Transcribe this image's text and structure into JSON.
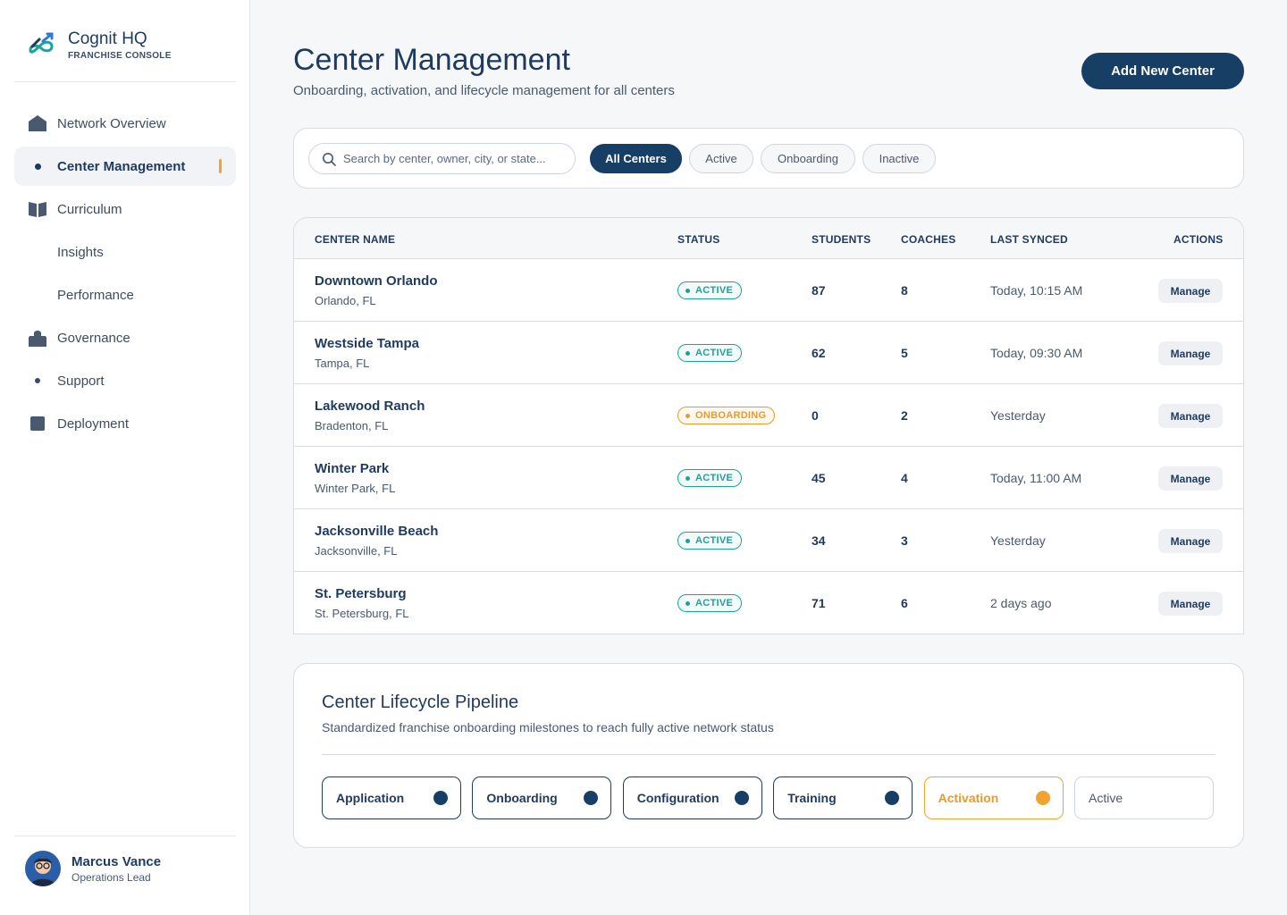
{
  "brand": {
    "name": "Cognit HQ",
    "subtitle": "FRANCHISE CONSOLE"
  },
  "nav": [
    {
      "label": "Network Overview",
      "icon": "home-icon"
    },
    {
      "label": "Center Management",
      "icon": "dot-icon",
      "active": true
    },
    {
      "label": "Curriculum",
      "icon": "book-icon"
    },
    {
      "label": "Insights",
      "icon": "none"
    },
    {
      "label": "Performance",
      "icon": "none"
    },
    {
      "label": "Governance",
      "icon": "lock-icon"
    },
    {
      "label": "Support",
      "icon": "dot-icon"
    },
    {
      "label": "Deployment",
      "icon": "square-icon"
    }
  ],
  "user": {
    "name": "Marcus Vance",
    "role": "Operations Lead"
  },
  "header": {
    "title": "Center Management",
    "subtitle": "Onboarding, activation, and lifecycle management for all centers",
    "add_button": "Add New Center"
  },
  "filters": {
    "search_placeholder": "Search by center, owner, city, or state...",
    "chips": [
      "All Centers",
      "Active",
      "Onboarding",
      "Inactive"
    ],
    "active_chip": "All Centers"
  },
  "table": {
    "columns": [
      "CENTER NAME",
      "STATUS",
      "STUDENTS",
      "COACHES",
      "LAST SYNCED",
      "ACTIONS"
    ],
    "action_label": "Manage",
    "rows": [
      {
        "name": "Downtown Orlando",
        "location": "Orlando, FL",
        "status": "ACTIVE",
        "students": "87",
        "coaches": "8",
        "synced": "Today, 10:15 AM"
      },
      {
        "name": "Westside Tampa",
        "location": "Tampa, FL",
        "status": "ACTIVE",
        "students": "62",
        "coaches": "5",
        "synced": "Today, 09:30 AM"
      },
      {
        "name": "Lakewood Ranch",
        "location": "Bradenton, FL",
        "status": "ONBOARDING",
        "students": "0",
        "coaches": "2",
        "synced": "Yesterday"
      },
      {
        "name": "Winter Park",
        "location": "Winter Park, FL",
        "status": "ACTIVE",
        "students": "45",
        "coaches": "4",
        "synced": "Today, 11:00 AM"
      },
      {
        "name": "Jacksonville Beach",
        "location": "Jacksonville, FL",
        "status": "ACTIVE",
        "students": "34",
        "coaches": "3",
        "synced": "Yesterday"
      },
      {
        "name": "St. Petersburg",
        "location": "St. Petersburg, FL",
        "status": "ACTIVE",
        "students": "71",
        "coaches": "6",
        "synced": "2 days ago"
      }
    ]
  },
  "pipeline": {
    "title": "Center Lifecycle Pipeline",
    "subtitle": "Standardized franchise onboarding milestones to reach fully active network status",
    "stages": [
      {
        "label": "Application",
        "state": "done"
      },
      {
        "label": "Onboarding",
        "state": "done"
      },
      {
        "label": "Configuration",
        "state": "done"
      },
      {
        "label": "Training",
        "state": "done"
      },
      {
        "label": "Activation",
        "state": "current"
      },
      {
        "label": "Active",
        "state": "pending"
      }
    ]
  },
  "colors": {
    "primary": "#173e64",
    "accent": "#f0a331",
    "active_status": "#1aa39b",
    "onboarding_status": "#e99a2c"
  }
}
